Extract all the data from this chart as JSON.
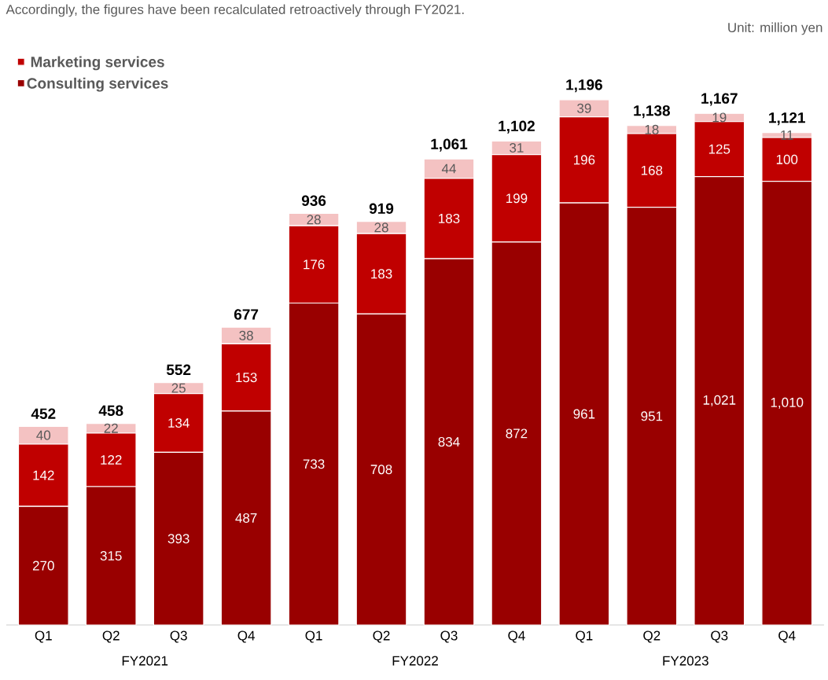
{
  "chart_data": {
    "type": "bar",
    "stacked": true,
    "categories": [
      "Q1",
      "Q2",
      "Q3",
      "Q4",
      "Q1",
      "Q2",
      "Q3",
      "Q4",
      "Q1",
      "Q2",
      "Q3",
      "Q4"
    ],
    "series": [
      {
        "name": "Consulting services",
        "color": "#990000",
        "values": [
          270,
          315,
          393,
          487,
          733,
          708,
          834,
          872,
          961,
          951,
          1021,
          1010
        ],
        "value_labels": [
          "270",
          "315",
          "393",
          "487",
          "733",
          "708",
          "834",
          "872",
          "961",
          "951",
          "1,021",
          "1,010"
        ]
      },
      {
        "name": "Marketing services",
        "color": "#c00000",
        "values": [
          142,
          122,
          134,
          153,
          176,
          183,
          183,
          199,
          196,
          168,
          125,
          100
        ],
        "value_labels": [
          "142",
          "122",
          "134",
          "153",
          "176",
          "183",
          "183",
          "199",
          "196",
          "168",
          "125",
          "100"
        ]
      },
      {
        "color": "#f4c2c2",
        "values": [
          40,
          22,
          25,
          38,
          28,
          28,
          44,
          31,
          39,
          18,
          19,
          11
        ],
        "value_labels": [
          "40",
          "22",
          "25",
          "38",
          "28",
          "28",
          "44",
          "31",
          "39",
          "18",
          "19",
          "11"
        ]
      }
    ],
    "totals": [
      "452",
      "458",
      "552",
      "677",
      "936",
      "919",
      "1,061",
      "1,102",
      "1,196",
      "1,138",
      "1,167",
      "1,121"
    ],
    "annotations": [
      "Accordingly, the figures have been recalculated retroactively through FY2021.",
      "Unit: million yen",
      "FY2021",
      "FY2022",
      "FY2023"
    ],
    "legend": "top left"
  }
}
